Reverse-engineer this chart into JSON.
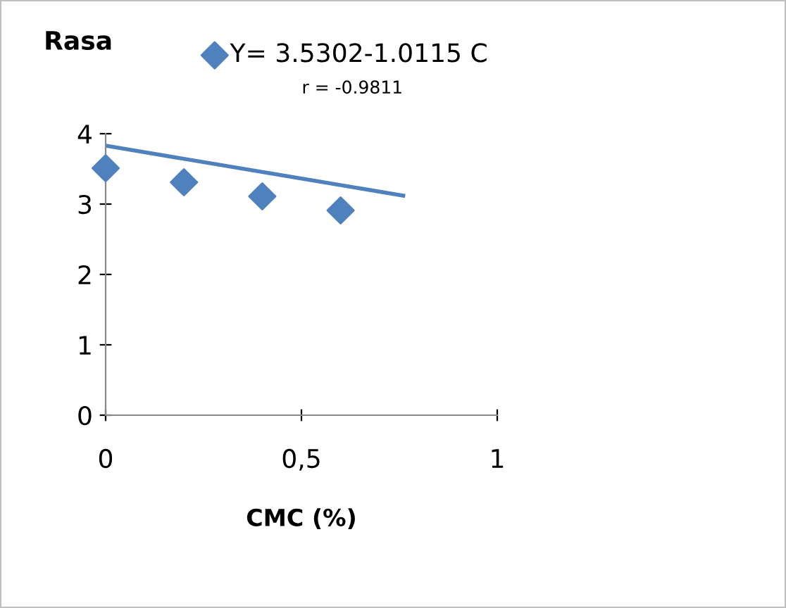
{
  "chart_data": {
    "type": "scatter",
    "ylabel": "Rasa",
    "xlabel": "CMC (%)",
    "annotations": [
      "r = -0.9811"
    ],
    "legend": "top",
    "grid": false,
    "marker": "diamond",
    "xlim": [
      0,
      1
    ],
    "xticks": [
      0,
      {
        "value": 0.5,
        "label": "0,5"
      },
      1
    ],
    "ylim": [
      0,
      4
    ],
    "yticks": [
      0,
      1,
      2,
      3,
      4
    ],
    "series": [
      {
        "name": "Y= 3.5302-1.0115 C",
        "color": "#4f81bd",
        "x": [
          0,
          0.2,
          0.4,
          0.6
        ],
        "values": [
          3.51,
          3.31,
          3.11,
          2.91
        ]
      },
      {
        "type": "line",
        "color": "#4f81bd",
        "x": [
          0,
          0.76
        ],
        "values": [
          3.83,
          3.12
        ],
        "marker": "none",
        "line_style": "solid"
      }
    ]
  }
}
